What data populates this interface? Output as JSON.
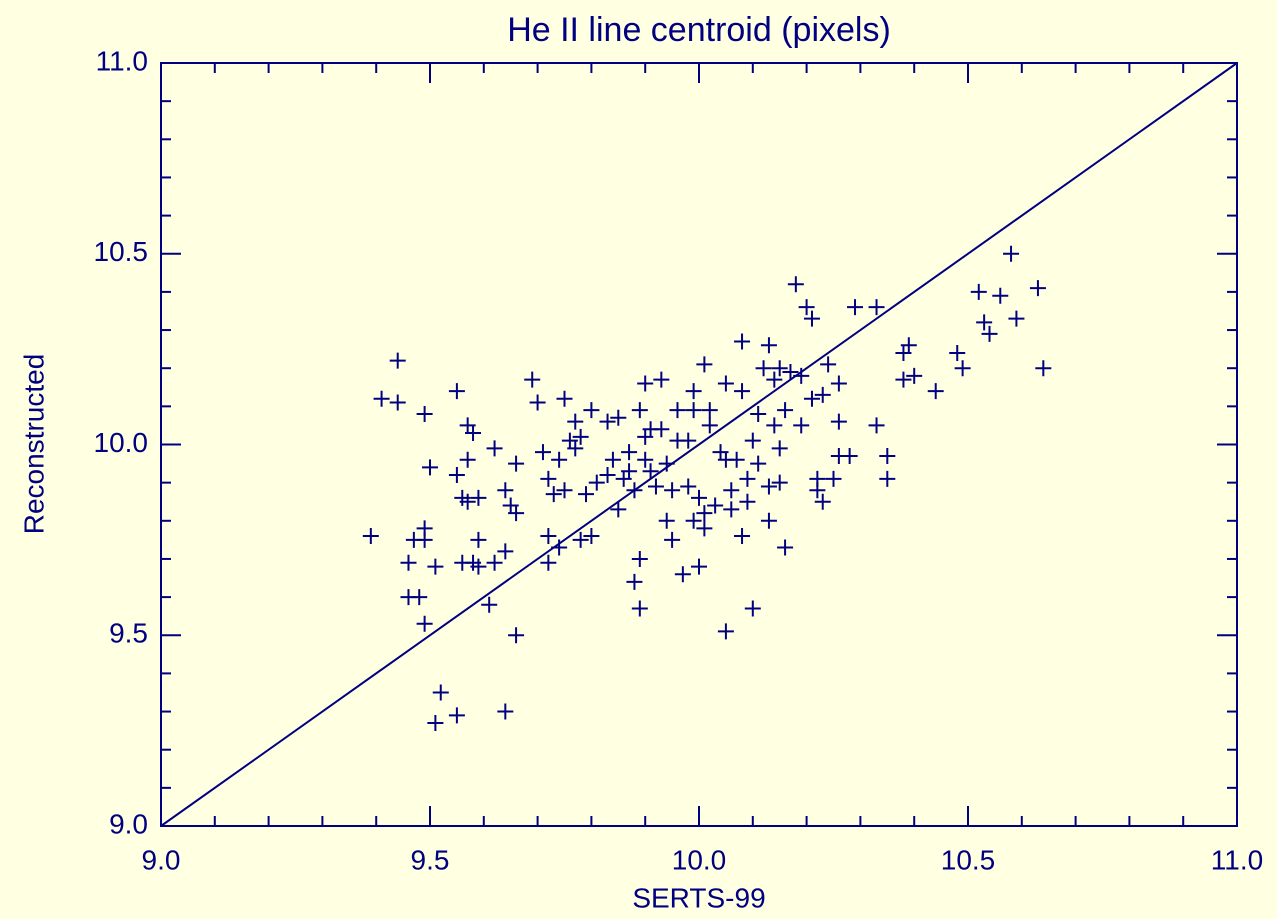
{
  "chart_data": {
    "type": "scatter",
    "title": "He II line centroid (pixels)",
    "xlabel": "SERTS-99",
    "ylabel": "Reconstructed",
    "color": "#000080",
    "xlim": [
      9.0,
      11.0
    ],
    "ylim": [
      9.0,
      11.0
    ],
    "xticks": [
      {
        "value": 9,
        "label": "9.0"
      },
      {
        "value": 9.5,
        "label": "9.5"
      },
      {
        "value": 10,
        "label": "10.0"
      },
      {
        "value": 10.5,
        "label": "10.5"
      },
      {
        "value": 11,
        "label": "11.0"
      }
    ],
    "yticks": [
      {
        "value": 9,
        "label": "9.0"
      },
      {
        "value": 9.5,
        "label": "9.5"
      },
      {
        "value": 10,
        "label": "10.0"
      },
      {
        "value": 10.5,
        "label": "10.5"
      },
      {
        "value": 11,
        "label": "11.0"
      }
    ],
    "x": [
      9.39,
      9.41,
      9.44,
      9.44,
      9.46,
      9.46,
      9.47,
      9.48,
      9.49,
      9.49,
      9.49,
      9.5,
      9.49,
      9.51,
      9.52,
      9.51,
      9.55,
      9.55,
      9.55,
      9.56,
      9.56,
      9.57,
      9.57,
      9.58,
      9.58,
      9.59,
      9.59,
      9.59,
      9.57,
      9.62,
      9.61,
      9.62,
      9.64,
      9.64,
      9.64,
      9.65,
      9.66,
      9.66,
      9.66,
      9.69,
      9.7,
      9.71,
      9.72,
      9.72,
      9.72,
      9.74,
      9.73,
      9.74,
      9.75,
      9.75,
      9.76,
      9.77,
      9.77,
      9.78,
      9.78,
      9.79,
      9.8,
      9.8,
      9.81,
      9.83,
      9.83,
      9.85,
      9.84,
      9.85,
      9.86,
      9.87,
      9.87,
      9.88,
      9.89,
      9.89,
      9.89,
      9.88,
      9.9,
      9.9,
      9.9,
      9.91,
      9.91,
      9.92,
      9.93,
      9.93,
      9.94,
      9.94,
      9.95,
      9.95,
      9.96,
      9.96,
      9.97,
      9.98,
      9.98,
      9.99,
      9.99,
      9.99,
      10.0,
      10.0,
      10.01,
      10.01,
      10.01,
      10.02,
      10.02,
      10.03,
      10.04,
      10.05,
      10.05,
      10.05,
      10.06,
      10.06,
      10.07,
      10.08,
      10.08,
      10.08,
      10.09,
      10.09,
      10.1,
      10.1,
      10.11,
      10.11,
      10.12,
      10.13,
      10.13,
      10.13,
      10.14,
      10.14,
      10.15,
      10.15,
      10.15,
      10.16,
      10.16,
      10.17,
      10.18,
      10.19,
      10.19,
      10.2,
      10.21,
      10.21,
      10.22,
      10.22,
      10.23,
      10.23,
      10.24,
      10.25,
      10.26,
      10.26,
      10.26,
      10.28,
      10.29,
      10.33,
      10.33,
      10.35,
      10.35,
      10.38,
      10.38,
      10.39,
      10.4,
      10.44,
      10.48,
      10.49,
      10.52,
      10.53,
      10.54,
      10.56,
      10.58,
      10.59,
      10.63,
      10.64
    ],
    "values": [
      9.76,
      10.12,
      10.22,
      10.11,
      9.69,
      9.6,
      9.75,
      9.6,
      9.75,
      9.78,
      10.08,
      9.94,
      9.53,
      9.68,
      9.35,
      9.27,
      9.29,
      10.14,
      9.92,
      9.69,
      9.86,
      10.05,
      9.96,
      10.03,
      9.69,
      9.86,
      9.75,
      9.68,
      9.85,
      9.99,
      9.58,
      9.69,
      9.72,
      9.3,
      9.88,
      9.84,
      9.95,
      9.5,
      9.82,
      10.17,
      10.11,
      9.98,
      9.69,
      9.76,
      9.91,
      9.73,
      9.87,
      9.96,
      10.12,
      9.88,
      10.01,
      10.06,
      9.99,
      9.75,
      10.02,
      9.87,
      9.76,
      10.09,
      9.9,
      9.92,
      10.06,
      10.07,
      9.96,
      9.83,
      9.91,
      9.98,
      9.93,
      9.64,
      9.7,
      10.09,
      9.57,
      9.88,
      9.96,
      10.02,
      10.16,
      10.04,
      9.93,
      9.89,
      10.04,
      10.17,
      9.8,
      9.95,
      9.75,
      9.88,
      10.01,
      10.09,
      9.66,
      9.89,
      10.01,
      10.14,
      10.09,
      9.8,
      9.68,
      9.86,
      10.21,
      9.78,
      9.82,
      10.09,
      10.05,
      9.84,
      9.98,
      9.96,
      9.51,
      10.16,
      9.83,
      9.88,
      9.96,
      10.27,
      9.76,
      10.14,
      9.91,
      9.85,
      9.57,
      10.01,
      9.95,
      10.08,
      10.2,
      9.89,
      10.26,
      9.8,
      10.17,
      10.05,
      9.9,
      10.2,
      9.99,
      9.73,
      10.09,
      10.19,
      10.42,
      10.05,
      10.18,
      10.36,
      10.12,
      10.33,
      9.91,
      9.88,
      9.85,
      10.13,
      10.21,
      9.91,
      9.97,
      10.06,
      10.16,
      9.97,
      10.36,
      10.36,
      10.05,
      9.97,
      9.91,
      10.24,
      10.17,
      10.26,
      10.18,
      10.14,
      10.24,
      10.2,
      10.4,
      10.32,
      10.29,
      10.39,
      10.5,
      10.33,
      10.41,
      10.2
    ]
  }
}
